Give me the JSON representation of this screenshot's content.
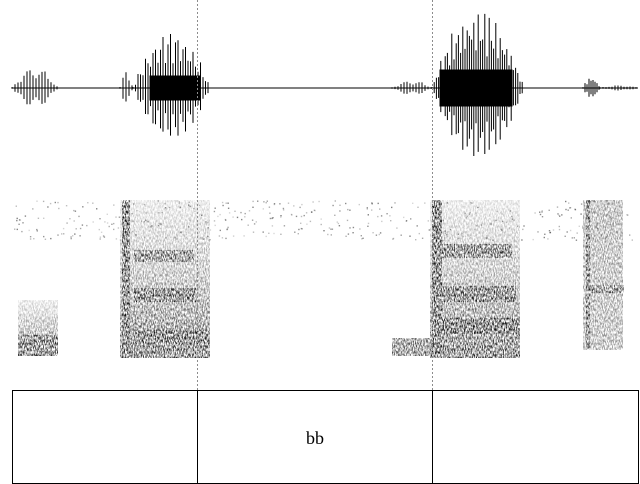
{
  "tier": {
    "intervals": [
      {
        "label": ""
      },
      {
        "label": "bb"
      },
      {
        "label": ""
      }
    ]
  },
  "colors": {
    "waveform": "#000000",
    "spectrogram_dark": "#1a1a1a",
    "cursor_line": "#8c8c8c",
    "tier_border": "#000000"
  }
}
